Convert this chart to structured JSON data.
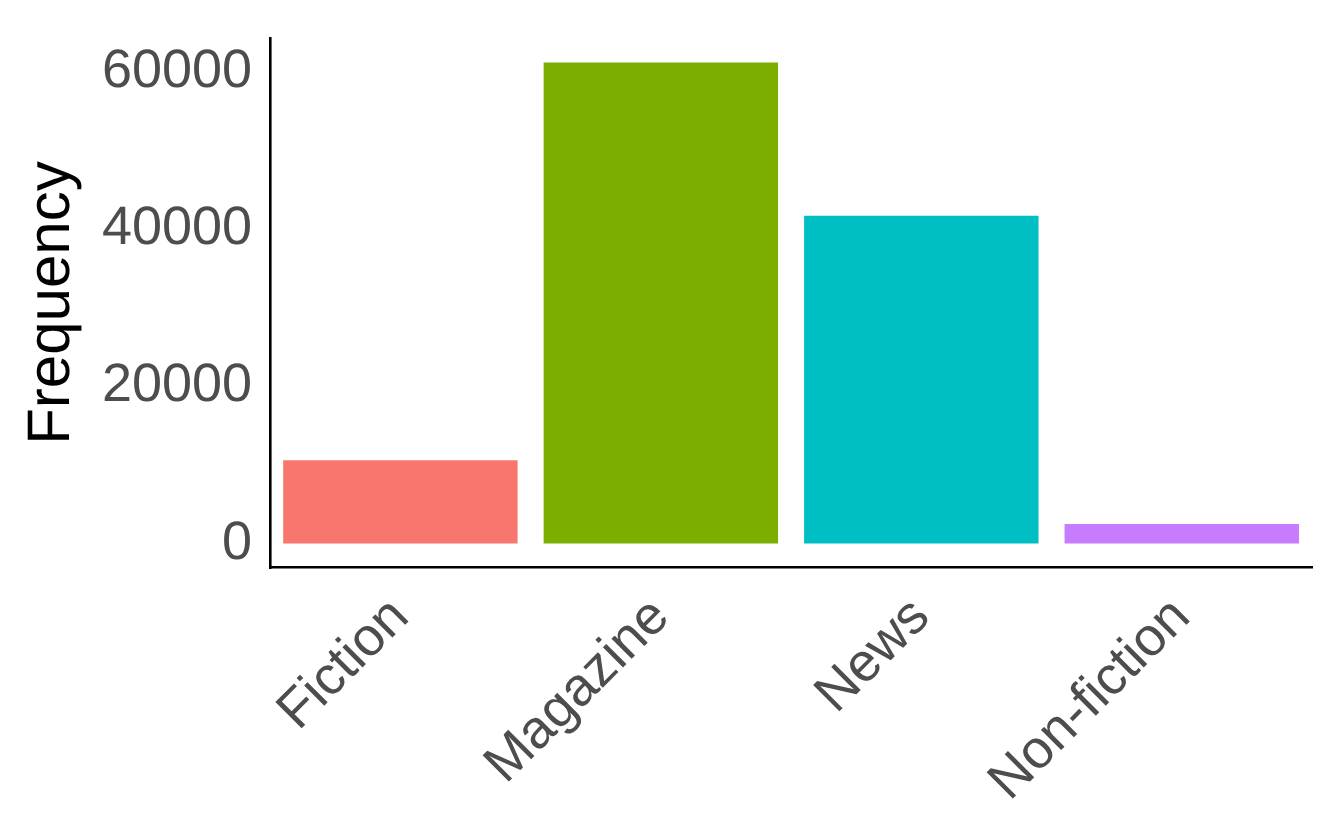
{
  "chart_data": {
    "type": "bar",
    "ylabel": "Frequency",
    "categories": [
      "Fiction",
      "Magazine",
      "News",
      "Non-fiction"
    ],
    "values": [
      10600,
      61200,
      41700,
      2500
    ],
    "colors": [
      "#f8766d",
      "#7cae00",
      "#00bfc4",
      "#c77cff"
    ],
    "ylim": [
      -3060,
      64260
    ],
    "yticks": [
      0,
      20000,
      40000,
      60000
    ],
    "grid": false,
    "legend": false
  }
}
